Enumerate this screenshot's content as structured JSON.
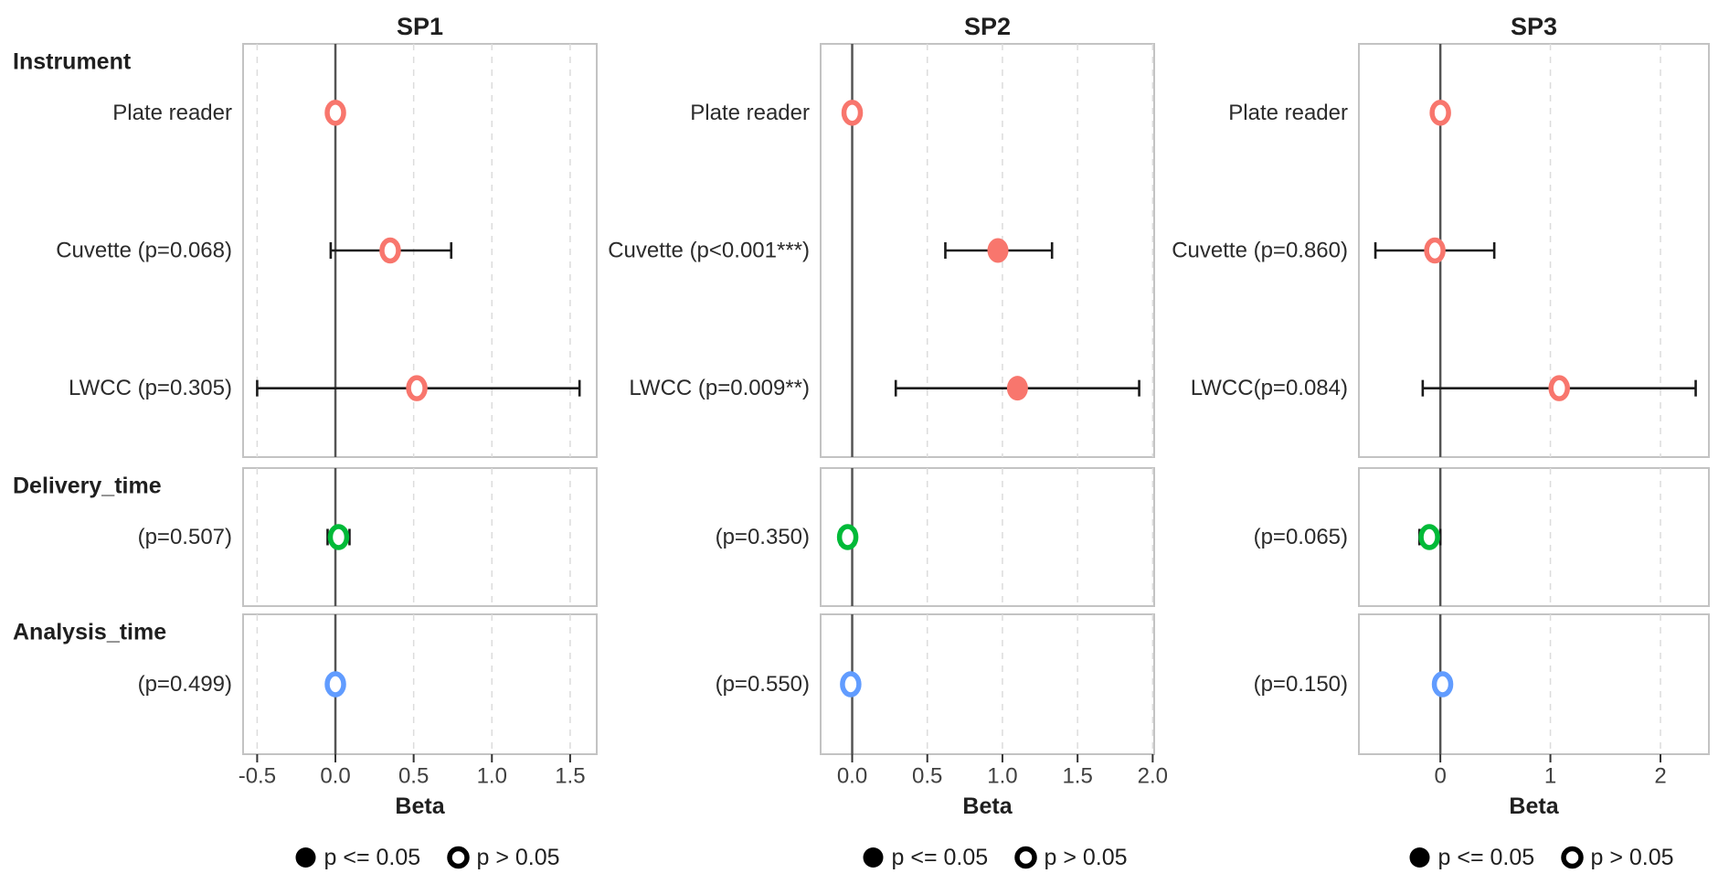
{
  "figure": {
    "section_labels": [
      "Instrument",
      "Delivery_time",
      "Analysis_time"
    ],
    "xlabel": "Beta",
    "legend": {
      "filled": "p <= 0.05",
      "open": "p > 0.05"
    },
    "colors": {
      "instrument": "#F8766D",
      "delivery_time": "#00BA38",
      "analysis_time": "#619CFF",
      "errorbar": "#1a1a1a",
      "zero_line": "#545454",
      "gridline": "#dcdcdc",
      "panel_border": "#c3c3c3",
      "text": "#1f1f1f"
    }
  },
  "chart_data": [
    {
      "type": "scatter",
      "title": "SP1",
      "xlabel": "Beta",
      "xlim": [
        -0.59,
        1.67
      ],
      "xticks": [
        {
          "v": -0.5,
          "label": "-0.5"
        },
        {
          "v": 0.0,
          "label": "0.0"
        },
        {
          "v": 0.5,
          "label": "0.5"
        },
        {
          "v": 1.0,
          "label": "1.0"
        },
        {
          "v": 1.5,
          "label": "1.5"
        }
      ],
      "sections": [
        {
          "rows": [
            {
              "label": "Plate reader",
              "beta": 0.0,
              "ci_low": null,
              "ci_high": null,
              "significant": false,
              "series": "instrument"
            },
            {
              "label": "Cuvette (p=0.068)",
              "beta": 0.35,
              "ci_low": -0.03,
              "ci_high": 0.74,
              "significant": false,
              "series": "instrument"
            },
            {
              "label": "LWCC (p=0.305)",
              "beta": 0.52,
              "ci_low": -0.5,
              "ci_high": 1.56,
              "significant": false,
              "series": "instrument"
            }
          ]
        },
        {
          "rows": [
            {
              "label": "(p=0.507)",
              "beta": 0.02,
              "ci_low": -0.05,
              "ci_high": 0.09,
              "significant": false,
              "series": "delivery_time"
            }
          ]
        },
        {
          "rows": [
            {
              "label": "(p=0.499)",
              "beta": 0.0,
              "ci_low": null,
              "ci_high": null,
              "significant": false,
              "series": "analysis_time"
            }
          ]
        }
      ]
    },
    {
      "type": "scatter",
      "title": "SP2",
      "xlabel": "Beta",
      "xlim": [
        -0.21,
        2.01
      ],
      "xticks": [
        {
          "v": 0.0,
          "label": "0.0"
        },
        {
          "v": 0.5,
          "label": "0.5"
        },
        {
          "v": 1.0,
          "label": "1.0"
        },
        {
          "v": 1.5,
          "label": "1.5"
        },
        {
          "v": 2.0,
          "label": "2.0"
        }
      ],
      "sections": [
        {
          "rows": [
            {
              "label": "Plate reader",
              "beta": 0.0,
              "ci_low": null,
              "ci_high": null,
              "significant": false,
              "series": "instrument"
            },
            {
              "label": "Cuvette (p<0.001***)",
              "beta": 0.97,
              "ci_low": 0.62,
              "ci_high": 1.33,
              "significant": true,
              "series": "instrument"
            },
            {
              "label": "LWCC (p=0.009**)",
              "beta": 1.1,
              "ci_low": 0.29,
              "ci_high": 1.91,
              "significant": true,
              "series": "instrument"
            }
          ]
        },
        {
          "rows": [
            {
              "label": "(p=0.350)",
              "beta": -0.03,
              "ci_low": -0.08,
              "ci_high": 0.02,
              "significant": false,
              "series": "delivery_time"
            }
          ]
        },
        {
          "rows": [
            {
              "label": "(p=0.550)",
              "beta": -0.01,
              "ci_low": null,
              "ci_high": null,
              "significant": false,
              "series": "analysis_time"
            }
          ]
        }
      ]
    },
    {
      "type": "scatter",
      "title": "SP3",
      "xlabel": "Beta",
      "xlim": [
        -0.74,
        2.44
      ],
      "xticks": [
        {
          "v": 0.0,
          "label": "0"
        },
        {
          "v": 1.0,
          "label": "1"
        },
        {
          "v": 2.0,
          "label": "2"
        }
      ],
      "sections": [
        {
          "rows": [
            {
              "label": "Plate reader",
              "beta": 0.0,
              "ci_low": null,
              "ci_high": null,
              "significant": false,
              "series": "instrument"
            },
            {
              "label": "Cuvette (p=0.860)",
              "beta": -0.05,
              "ci_low": -0.59,
              "ci_high": 0.49,
              "significant": false,
              "series": "instrument"
            },
            {
              "label": "LWCC(p=0.084)",
              "beta": 1.08,
              "ci_low": -0.16,
              "ci_high": 2.32,
              "significant": false,
              "series": "instrument"
            }
          ]
        },
        {
          "rows": [
            {
              "label": "(p=0.065)",
              "beta": -0.1,
              "ci_low": -0.19,
              "ci_high": 0.0,
              "significant": false,
              "series": "delivery_time"
            }
          ]
        },
        {
          "rows": [
            {
              "label": "(p=0.150)",
              "beta": 0.02,
              "ci_low": null,
              "ci_high": null,
              "significant": false,
              "series": "analysis_time"
            }
          ]
        }
      ]
    }
  ]
}
